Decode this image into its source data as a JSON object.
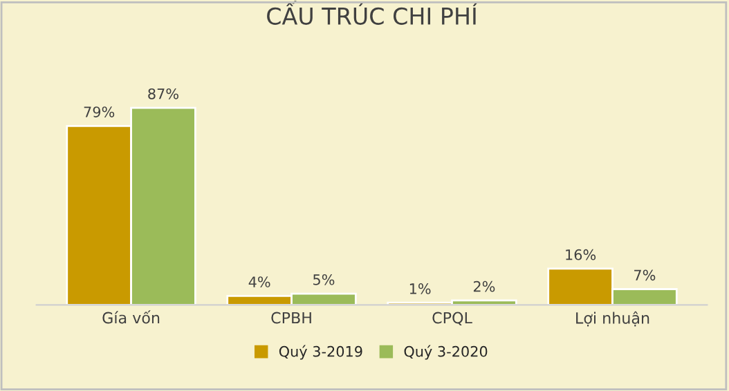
{
  "chart_data": {
    "type": "bar",
    "title": "CẤU TRÚC CHI PHÍ",
    "categories": [
      "Gía vốn",
      "CPBH",
      "CPQL",
      "Lợi nhuận"
    ],
    "series": [
      {
        "name": "Quý 3-2019",
        "color": "#c99a00",
        "values": [
          79,
          4,
          1,
          16
        ],
        "value_labels": [
          "79%",
          "4%",
          "1%",
          "16%"
        ]
      },
      {
        "name": "Quý 3-2020",
        "color": "#9bbb59",
        "values": [
          87,
          5,
          2,
          7
        ],
        "value_labels": [
          "87%",
          "5%",
          "2%",
          "7%"
        ]
      }
    ],
    "legend": "bottom",
    "grid": false
  }
}
